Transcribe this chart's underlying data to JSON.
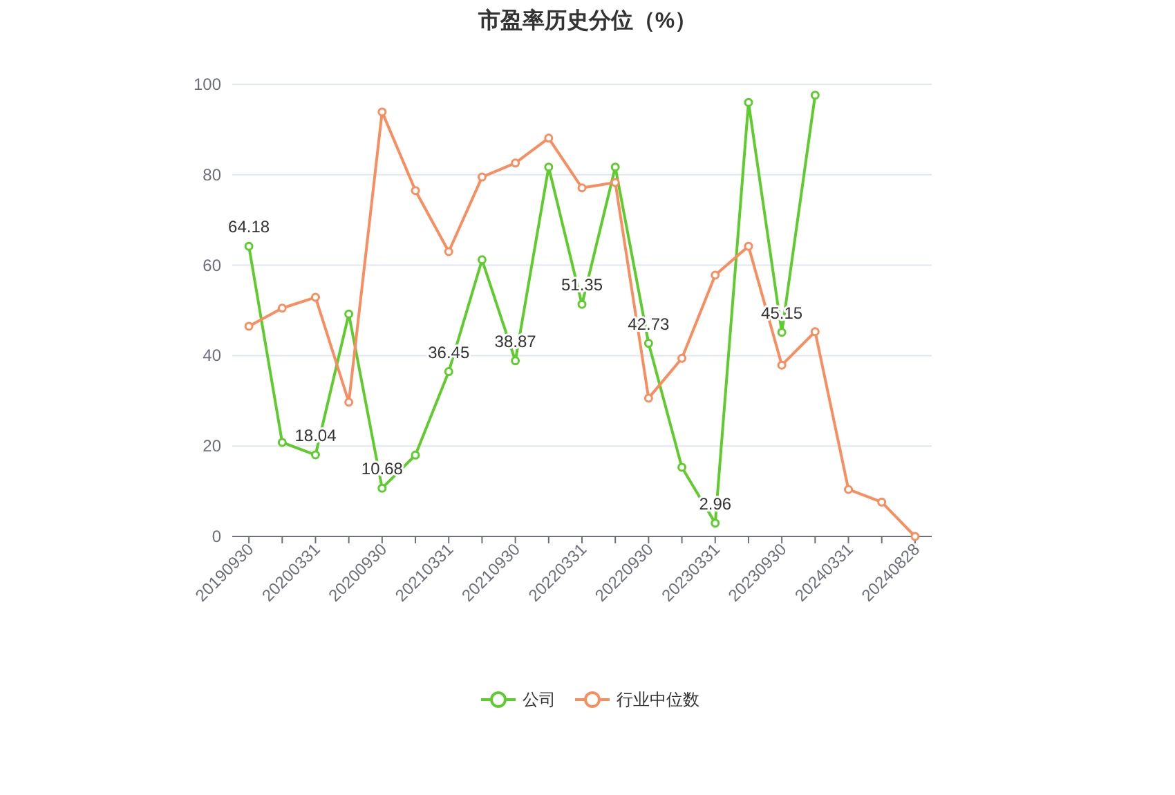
{
  "chart_data": {
    "type": "line",
    "title": "市盈率历史分位（%）",
    "categories": [
      "20190930",
      null,
      "20200331",
      null,
      "20200930",
      null,
      "20210331",
      null,
      "20210930",
      null,
      "20220331",
      null,
      "20220930",
      null,
      "20230331",
      null,
      "20230930",
      null,
      "20240331",
      null,
      "20240828"
    ],
    "series": [
      {
        "name": "公司",
        "color": "#5fcc2e",
        "values": [
          64.18,
          20.8,
          18.04,
          49.2,
          10.68,
          18.0,
          36.45,
          61.2,
          38.87,
          81.7,
          51.35,
          81.7,
          42.73,
          15.3,
          2.96,
          96.0,
          45.15,
          97.6,
          null,
          null,
          null
        ],
        "value_labels": [
          "64.18",
          null,
          "18.04",
          null,
          "10.68",
          null,
          "36.45",
          null,
          "38.87",
          null,
          "51.35",
          null,
          "42.73",
          null,
          "2.96",
          null,
          "45.15",
          null,
          null,
          null,
          null
        ]
      },
      {
        "name": "行业中位数",
        "color": "#f88e5f",
        "values": [
          46.5,
          50.5,
          52.9,
          29.7,
          93.9,
          76.5,
          63.0,
          79.5,
          82.6,
          88.1,
          77.1,
          78.3,
          30.6,
          39.4,
          57.8,
          64.2,
          37.9,
          45.3,
          10.4,
          7.6,
          0
        ]
      }
    ],
    "ylim": [
      0,
      100
    ],
    "yticks": [
      0,
      20,
      40,
      60,
      80,
      100
    ],
    "grid": "y",
    "legend": "bottom",
    "marker": "circle",
    "line_style": "solid"
  }
}
